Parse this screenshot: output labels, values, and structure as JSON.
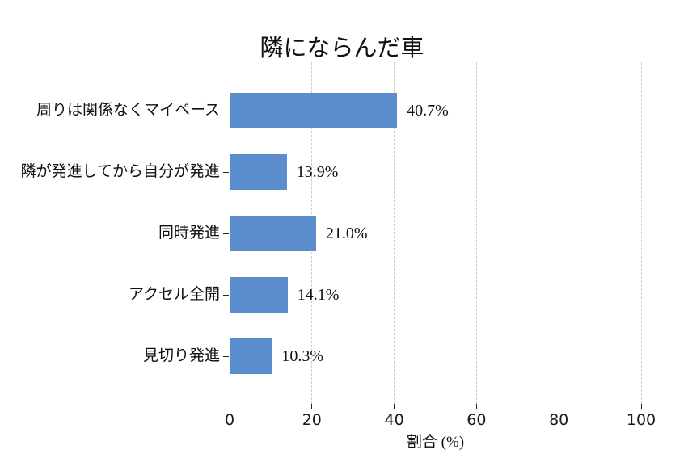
{
  "chart_data": {
    "type": "bar",
    "orientation": "horizontal",
    "title": "隣にならんだ車",
    "xlabel": "割合 (%)",
    "categories": [
      "周りは関係なくマイペース",
      "隣が発進してから自分が発進",
      "同時発進",
      "アクセル全開",
      "見切り発進"
    ],
    "values": [
      40.7,
      13.9,
      21.0,
      14.1,
      10.3
    ],
    "value_labels": [
      "40.7%",
      "13.9%",
      "21.0%",
      "14.1%",
      "10.3%"
    ],
    "x_ticks": [
      0,
      20,
      40,
      60,
      80,
      100
    ],
    "x_tick_labels": [
      "0",
      "20",
      "40",
      "60",
      "80",
      "100"
    ],
    "xlim": [
      0,
      100
    ],
    "grid": "dashed-vertical",
    "legend": "none",
    "bar_color": "#5B8DCE",
    "grid_color": "#CCCCCC",
    "tick_color": "#262626",
    "text_color": "#111111",
    "background_color": "#FFFFFF"
  }
}
